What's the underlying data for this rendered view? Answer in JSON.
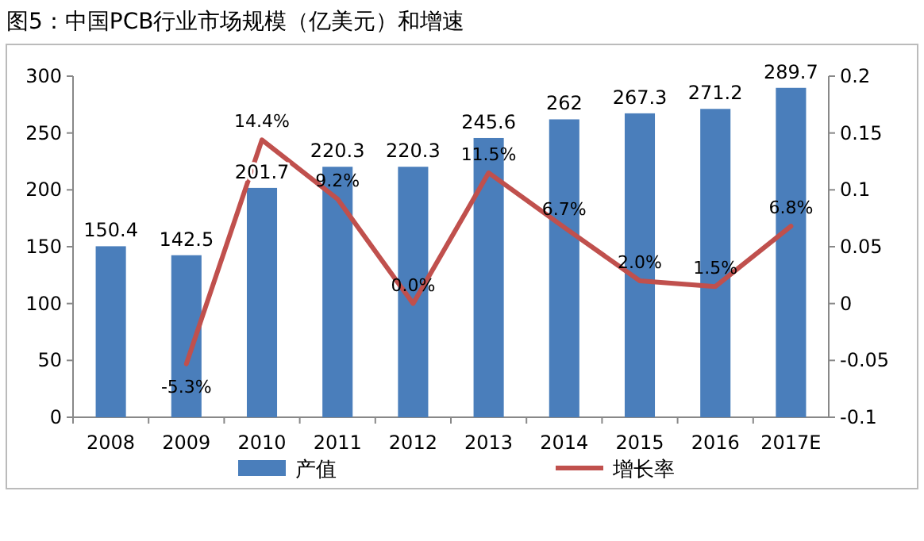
{
  "chart_data": {
    "type": "bar",
    "title": "图5：中国PCB行业市场规模（亿美元）和增速",
    "categories": [
      "2008",
      "2009",
      "2010",
      "2011",
      "2012",
      "2013",
      "2014",
      "2015",
      "2016",
      "2017E"
    ],
    "series": [
      {
        "name": "产值",
        "color": "#4a7ebb",
        "values": [
          150.4,
          142.5,
          201.7,
          220.3,
          220.3,
          245.6,
          262,
          267.3,
          271.2,
          289.7
        ],
        "value_labels": [
          "150.4",
          "142.5",
          "201.7",
          "220.3",
          "220.3",
          "245.6",
          "262",
          "267.3",
          "271.2",
          "289.7"
        ]
      },
      {
        "name": "增长率",
        "type": "line",
        "axis": "y2",
        "color": "#c0504d",
        "values": [
          null,
          -0.053,
          0.144,
          0.092,
          0.0,
          0.115,
          0.067,
          0.02,
          0.015,
          0.068
        ],
        "value_labels": [
          null,
          "-5.3%",
          "14.4%",
          "9.2%",
          "0.0%",
          "11.5%",
          "6.7%",
          "2.0%",
          "1.5%",
          "6.8%"
        ]
      }
    ],
    "ylim": [
      0,
      300
    ],
    "yticks": [
      0,
      50,
      100,
      150,
      200,
      250,
      300
    ],
    "y2lim": [
      -0.1,
      0.2
    ],
    "y2ticks": [
      -0.1,
      -0.05,
      0,
      0.05,
      0.1,
      0.15,
      0.2
    ],
    "legend": "bottom",
    "grid": false
  }
}
